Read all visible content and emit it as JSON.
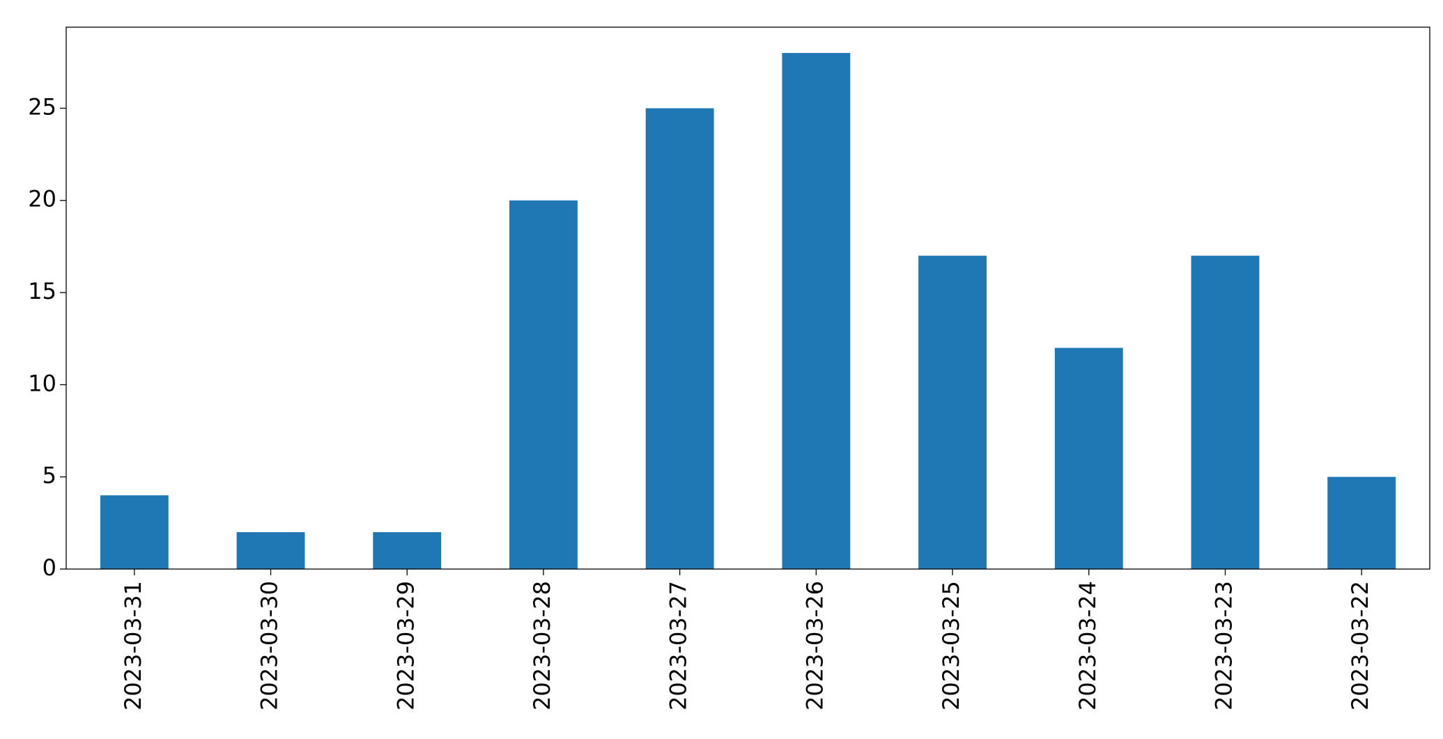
{
  "chart_data": {
    "type": "bar",
    "categories": [
      "2023-03-31",
      "2023-03-30",
      "2023-03-29",
      "2023-03-28",
      "2023-03-27",
      "2023-03-26",
      "2023-03-25",
      "2023-03-24",
      "2023-03-23",
      "2023-03-22"
    ],
    "values": [
      4,
      2,
      2,
      20,
      25,
      28,
      17,
      12,
      17,
      5
    ],
    "color": "#1f77b4",
    "ylim": [
      0,
      29.4
    ],
    "yticks": [
      0,
      5,
      10,
      15,
      20,
      25
    ],
    "grid": false
  }
}
